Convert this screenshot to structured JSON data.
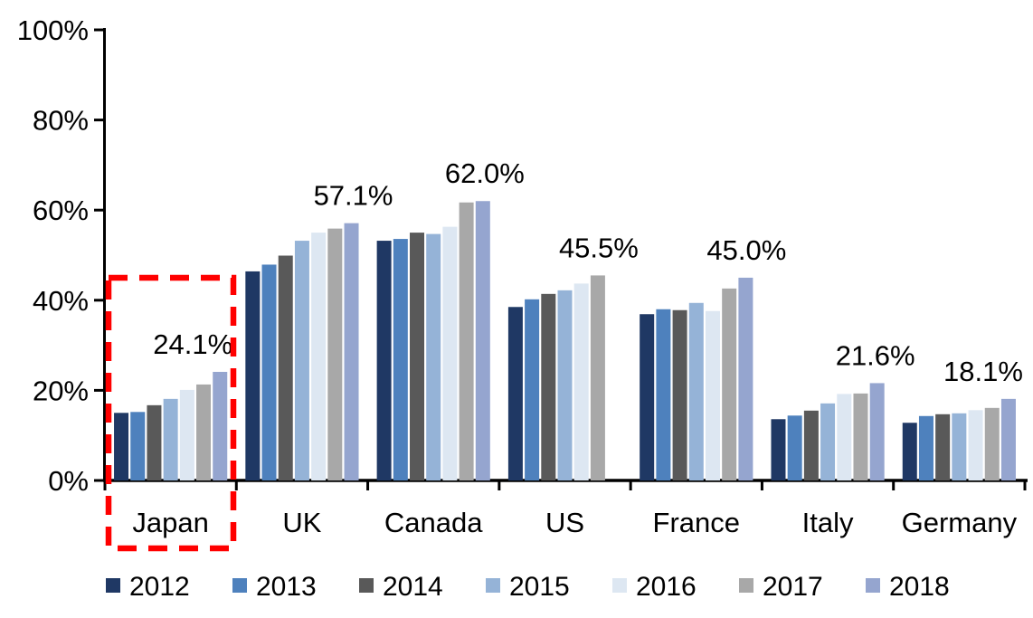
{
  "chart_data": {
    "type": "bar",
    "title": "",
    "categories": [
      "Japan",
      "UK",
      "Canada",
      "US",
      "France",
      "Italy",
      "Germany"
    ],
    "series": [
      {
        "name": "2012",
        "color": "#1F3864",
        "values": [
          15.0,
          46.4,
          53.2,
          38.5,
          36.9,
          13.6,
          12.8
        ]
      },
      {
        "name": "2013",
        "color": "#4E81BD",
        "values": [
          15.2,
          47.9,
          53.6,
          40.2,
          38.0,
          14.4,
          14.3
        ]
      },
      {
        "name": "2014",
        "color": "#595959",
        "values": [
          16.7,
          49.9,
          55.0,
          41.4,
          37.8,
          15.5,
          14.7
        ]
      },
      {
        "name": "2015",
        "color": "#95B3D7",
        "values": [
          18.1,
          53.2,
          54.7,
          42.2,
          39.4,
          17.1,
          14.9
        ]
      },
      {
        "name": "2016",
        "color": "#DDE7F2",
        "values": [
          20.1,
          55.0,
          56.3,
          43.7,
          37.6,
          19.2,
          15.6
        ]
      },
      {
        "name": "2017",
        "color": "#A8A8A8",
        "values": [
          21.3,
          55.9,
          61.7,
          45.5,
          42.6,
          19.3,
          16.1
        ]
      },
      {
        "name": "2018",
        "color": "#95A5CF",
        "values": [
          24.1,
          57.1,
          62.0,
          null,
          45.0,
          21.6,
          18.1
        ]
      }
    ],
    "y_axis": {
      "min": 0,
      "max": 100,
      "tick_step": 20,
      "tick_labels": [
        "0%",
        "20%",
        "40%",
        "60%",
        "80%",
        "100%"
      ],
      "grid": false
    },
    "legend": {
      "position": "bottom",
      "entries": [
        "2012",
        "2013",
        "2014",
        "2015",
        "2016",
        "2017",
        "2018"
      ]
    },
    "data_labels": [
      {
        "category": "Japan",
        "series": "2018",
        "text": "24.1%",
        "dx": -30
      },
      {
        "category": "UK",
        "series": "2018",
        "text": "57.1%",
        "dx": 2
      },
      {
        "category": "Canada",
        "series": "2018",
        "text": "62.0%",
        "dx": 2
      },
      {
        "category": "US",
        "series": "2017",
        "text": "45.5%",
        "dx": 1
      },
      {
        "category": "France",
        "series": "2018",
        "text": "45.0%",
        "dx": 1
      },
      {
        "category": "Italy",
        "series": "2018",
        "text": "21.6%",
        "dx": -2
      },
      {
        "category": "Germany",
        "series": "2018",
        "text": "18.1%",
        "dx": -28
      }
    ],
    "highlight_box": {
      "category": "Japan",
      "color": "#FF0000",
      "style": "dashed"
    },
    "colors": {
      "axis": "#000000",
      "background": "#FFFFFF"
    }
  }
}
